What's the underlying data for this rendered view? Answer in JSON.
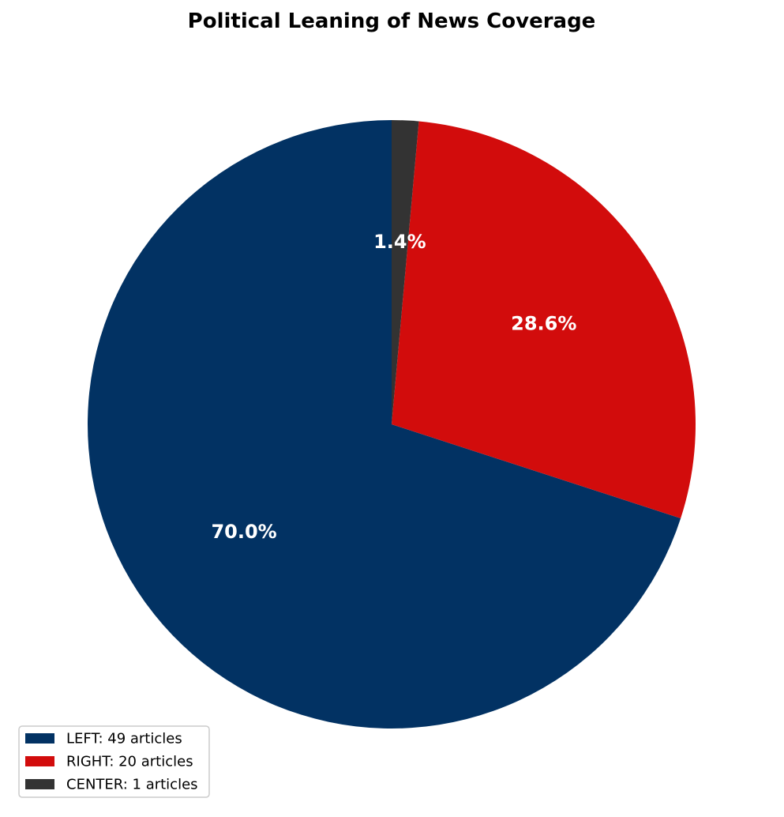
{
  "chart_data": {
    "type": "pie",
    "title": "Political Leaning of News Coverage",
    "start_angle_deg": 90,
    "direction": "counterclockwise",
    "slices": [
      {
        "name": "LEFT",
        "value": 49,
        "percent_label": "70.0%",
        "legend_label": "LEFT: 49 articles",
        "color": "#023263"
      },
      {
        "name": "RIGHT",
        "value": 20,
        "percent_label": "28.6%",
        "legend_label": "RIGHT: 20 articles",
        "color": "#D20C0C"
      },
      {
        "name": "CENTER",
        "value": 1,
        "percent_label": "1.4%",
        "legend_label": "CENTER: 1 articles",
        "color": "#333333"
      }
    ],
    "legend_position": "bottom-left"
  }
}
